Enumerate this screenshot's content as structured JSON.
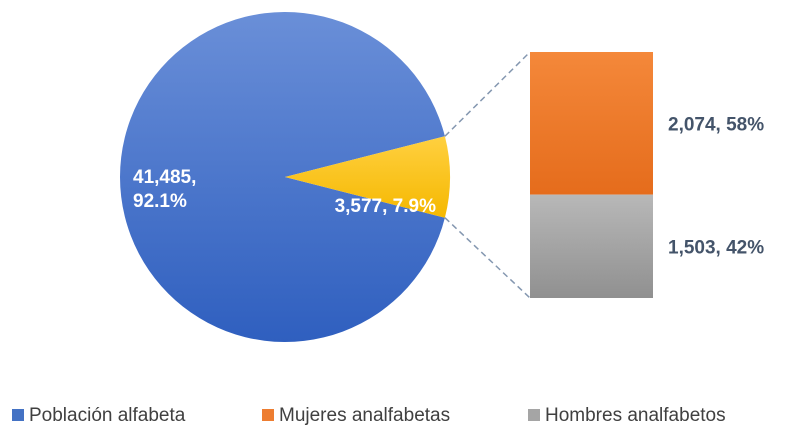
{
  "chart_data": {
    "type": "bar-of-pie",
    "pie": {
      "categories": [
        "Población alfabeta",
        null
      ],
      "values": [
        41485,
        3577
      ],
      "value_labels": [
        "41,485,\n92.1%",
        "3,577, 7.9%"
      ],
      "colors": [
        "#4472c4",
        "#ffc000"
      ]
    },
    "bar": {
      "categories": [
        "Mujeres analfabetas",
        "Hombres analfabetos"
      ],
      "values": [
        2074,
        1503
      ],
      "value_labels": [
        "2,074, 58%",
        "1,503, 42%"
      ],
      "colors": [
        "#ed7d31",
        "#a5a5a5"
      ]
    },
    "legend": "bottom"
  }
}
